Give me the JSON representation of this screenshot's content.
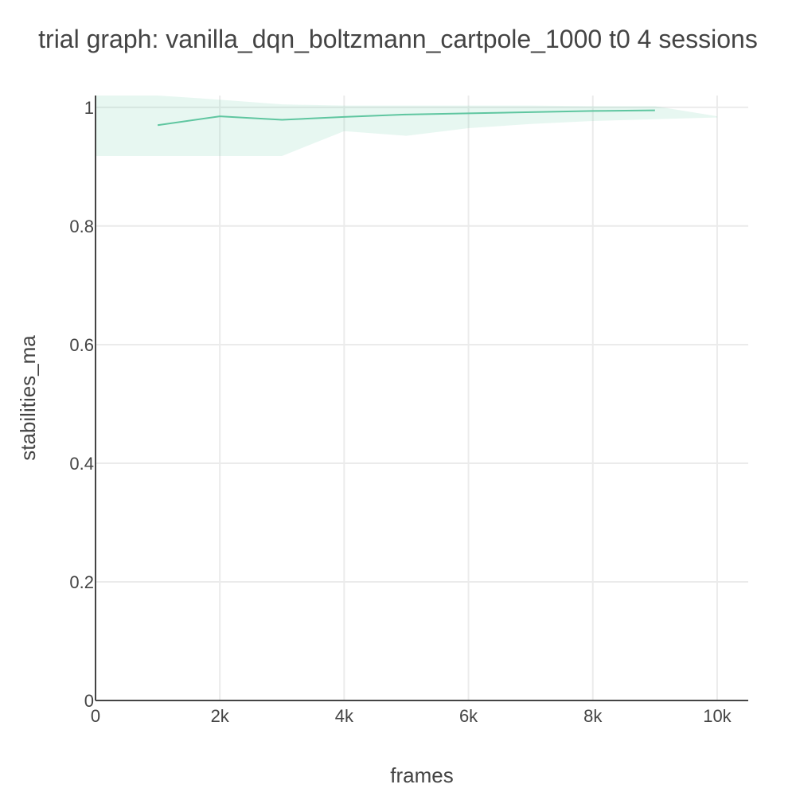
{
  "chart_data": {
    "type": "line",
    "title": "trial graph: vanilla_dqn_boltzmann_cartpole_1000 t0 4 sessions",
    "xlabel": "frames",
    "ylabel": "stabilities_ma",
    "xlim": [
      0,
      10500
    ],
    "ylim": [
      0,
      1.02
    ],
    "x_ticks": [
      0,
      2000,
      4000,
      6000,
      8000,
      10000
    ],
    "x_tick_labels": [
      "0",
      "2k",
      "4k",
      "6k",
      "8k",
      "10k"
    ],
    "y_ticks": [
      0,
      0.2,
      0.4,
      0.6,
      0.8,
      1
    ],
    "y_tick_labels": [
      "0",
      "0.2",
      "0.4",
      "0.6",
      "0.8",
      "1"
    ],
    "grid": true,
    "colors": {
      "line": "#5fc6a0",
      "band": "#5fc6a0",
      "grid": "#ebebeb",
      "axis": "#444444",
      "text": "#444444"
    },
    "series": [
      {
        "x": [
          1000,
          2000,
          3000,
          4000,
          5000,
          6000,
          7000,
          8000,
          9000
        ],
        "values": [
          0.97,
          0.985,
          0.979,
          0.984,
          0.988,
          0.99,
          0.992,
          0.994,
          0.995
        ]
      }
    ],
    "error_band": {
      "x": [
        0,
        1000,
        2000,
        3000,
        4000,
        5000,
        6000,
        7000,
        8000,
        9000,
        10000
      ],
      "upper": [
        1.03,
        1.03,
        1.013,
        1.005,
        1.003,
        1.003,
        1.003,
        1.003,
        1.002,
        1.002,
        0.985
      ],
      "lower": [
        0.918,
        0.918,
        0.918,
        0.918,
        0.96,
        0.952,
        0.965,
        0.972,
        0.977,
        0.98,
        0.983
      ]
    }
  }
}
